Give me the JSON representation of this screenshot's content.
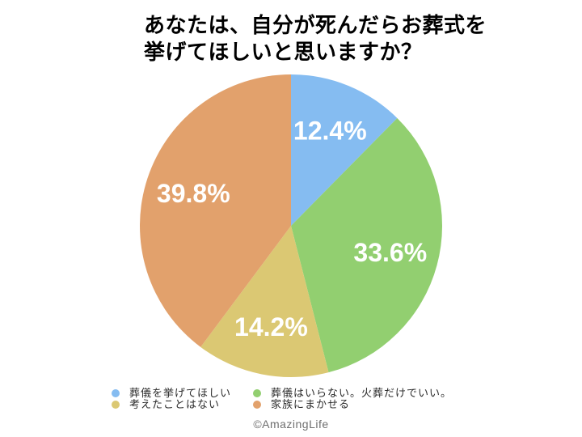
{
  "title": {
    "line1": "あなたは、自分が死んだらお葬式を",
    "line2": "挙げてほしいと思いますか？"
  },
  "chart_data": {
    "type": "pie",
    "title": "あなたは、自分が死んだらお葬式を挙げてほしいと思いますか？",
    "start_angle_deg": 0,
    "direction": "clockwise",
    "legend_position": "bottom",
    "value_suffix": "%",
    "series": [
      {
        "key": "want-funeral",
        "label": "葬儀を挙げてほしい",
        "value": 12.4,
        "display": "12.4%",
        "color": "#85BCF1"
      },
      {
        "key": "no-funeral-cremation-only",
        "label": "葬儀はいらない。火葬だけでいい。",
        "value": 33.6,
        "display": "33.6%",
        "color": "#92CF70"
      },
      {
        "key": "never-thought",
        "label": "考えたことはない",
        "value": 14.2,
        "display": "14.2%",
        "color": "#DBC873"
      },
      {
        "key": "leave-to-family",
        "label": "家族にまかせる",
        "value": 39.8,
        "display": "39.8%",
        "color": "#E2A16C"
      }
    ]
  },
  "footer": {
    "credit": "©AmazingLife"
  }
}
